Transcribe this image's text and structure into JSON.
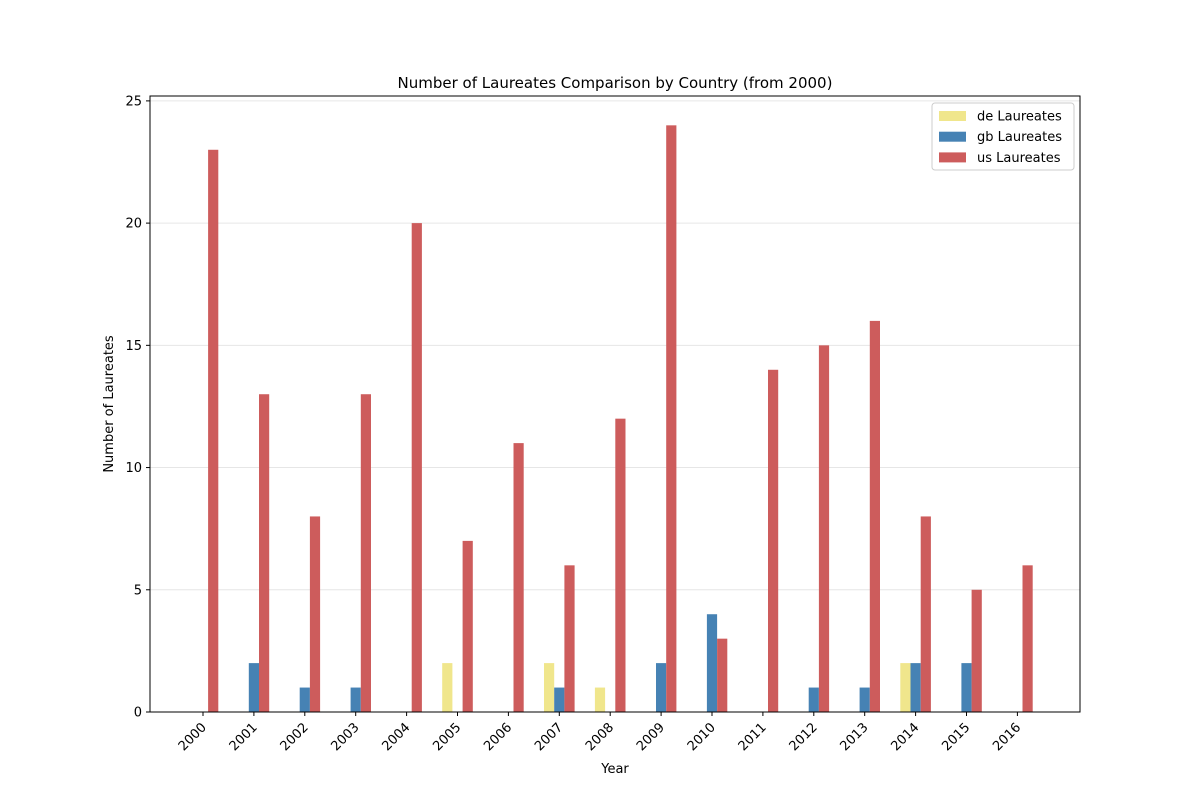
{
  "chart_data": {
    "type": "bar",
    "title": "Number of Laureates Comparison by Country (from 2000)",
    "xlabel": "Year",
    "ylabel": "Number of Laureates",
    "categories": [
      "2000",
      "2001",
      "2002",
      "2003",
      "2004",
      "2005",
      "2006",
      "2007",
      "2008",
      "2009",
      "2010",
      "2011",
      "2012",
      "2013",
      "2014",
      "2015",
      "2016"
    ],
    "series": [
      {
        "name": "de Laureates",
        "color": "#f0e68c",
        "values": [
          0,
          0,
          0,
          0,
          0,
          2,
          0,
          2,
          1,
          0,
          0,
          0,
          0,
          0,
          2,
          0,
          0
        ]
      },
      {
        "name": "gb Laureates",
        "color": "#4682b4",
        "values": [
          0,
          2,
          1,
          1,
          0,
          0,
          0,
          1,
          0,
          2,
          4,
          0,
          1,
          1,
          2,
          2,
          0
        ]
      },
      {
        "name": "us Laureates",
        "color": "#cd5c5c",
        "values": [
          23,
          13,
          8,
          13,
          20,
          7,
          11,
          6,
          12,
          24,
          3,
          14,
          15,
          16,
          8,
          5,
          6
        ]
      }
    ],
    "ylim": [
      0,
      25.2
    ],
    "yticks": [
      0,
      5,
      10,
      15,
      20,
      25
    ],
    "grid": "horizontal",
    "legend_position": "top-right"
  }
}
